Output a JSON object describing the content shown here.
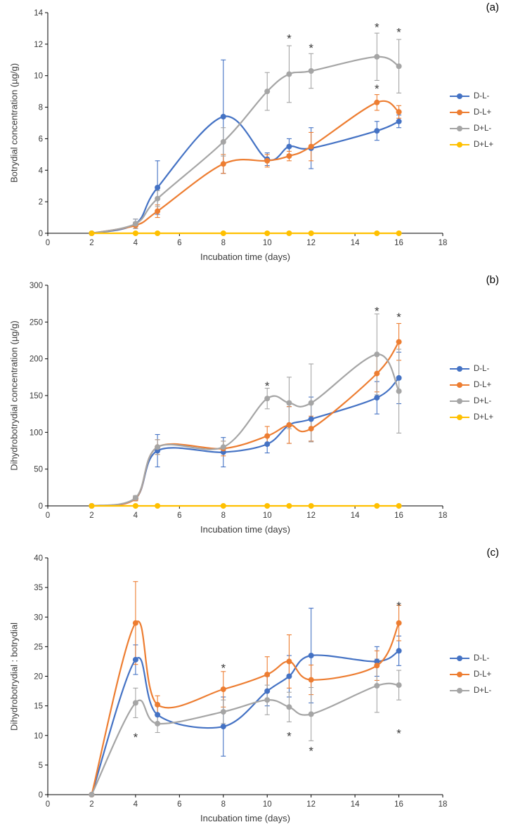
{
  "figure": {
    "background": "#ffffff"
  },
  "colors": {
    "axis": "#000000",
    "label_text": "#3a3a3a",
    "blue": "#4472C4",
    "orange": "#ED7D31",
    "gray": "#A5A5A5",
    "yellow": "#FFC000"
  },
  "chart_data": [
    {
      "id": "a",
      "type": "line",
      "panel_label": "(a)",
      "xlabel": "Incubation time (days)",
      "ylabel": "Botrydial concentration (µg/g)",
      "xlim": [
        0,
        18
      ],
      "ylim": [
        0,
        14
      ],
      "xticks": [
        0,
        2,
        4,
        6,
        8,
        10,
        12,
        14,
        16,
        18
      ],
      "yticks": [
        0,
        2,
        4,
        6,
        8,
        10,
        12,
        14
      ],
      "x": [
        2,
        4,
        5,
        8,
        10,
        11,
        12,
        15,
        16
      ],
      "series": [
        {
          "name": "D-L-",
          "color": "#4472C4",
          "values": [
            0,
            0.6,
            2.9,
            7.4,
            4.7,
            5.5,
            5.4,
            6.5,
            7.1
          ],
          "errors": [
            0,
            0.3,
            1.7,
            3.6,
            0.4,
            0.5,
            1.3,
            0.6,
            0.4
          ]
        },
        {
          "name": "D-L+",
          "color": "#ED7D31",
          "values": [
            0,
            0.5,
            1.4,
            4.4,
            4.6,
            4.9,
            5.5,
            8.3,
            7.7
          ],
          "errors": [
            0,
            0.2,
            0.4,
            0.6,
            0.4,
            0.3,
            0.9,
            0.5,
            0.4
          ]
        },
        {
          "name": "D+L-",
          "color": "#A5A5A5",
          "values": [
            0,
            0.6,
            2.2,
            5.8,
            9.0,
            10.1,
            10.3,
            11.2,
            10.6
          ],
          "errors": [
            0,
            0.3,
            0.5,
            0.9,
            1.2,
            1.8,
            1.1,
            1.5,
            1.7
          ]
        },
        {
          "name": "D+L+",
          "color": "#FFC000",
          "values": [
            0,
            0,
            0,
            0,
            0,
            0,
            0,
            0,
            0
          ],
          "errors": [
            0,
            0,
            0,
            0,
            0,
            0,
            0,
            0,
            0
          ]
        }
      ],
      "asterisks": [
        {
          "x": 11,
          "y": 12.6
        },
        {
          "x": 12,
          "y": 12.0
        },
        {
          "x": 15,
          "y": 13.3
        },
        {
          "x": 15,
          "y": 9.4
        },
        {
          "x": 16,
          "y": 13.0
        }
      ]
    },
    {
      "id": "b",
      "type": "line",
      "panel_label": "(b)",
      "xlabel": "Incubation time (days)",
      "ylabel": "Dihydrobotrydial concentration (µg/g)",
      "xlim": [
        0,
        18
      ],
      "ylim": [
        0,
        300
      ],
      "xticks": [
        0,
        2,
        4,
        6,
        8,
        10,
        12,
        14,
        16,
        18
      ],
      "yticks": [
        0,
        50,
        100,
        150,
        200,
        250,
        300
      ],
      "x": [
        2,
        4,
        5,
        8,
        10,
        11,
        12,
        15,
        16
      ],
      "series": [
        {
          "name": "D-L-",
          "color": "#4472C4",
          "values": [
            0,
            10,
            75,
            73,
            84,
            110,
            118,
            147,
            174
          ],
          "errors": [
            0,
            3,
            22,
            20,
            12,
            25,
            30,
            22,
            35
          ]
        },
        {
          "name": "D-L+",
          "color": "#ED7D31",
          "values": [
            0,
            10,
            80,
            78,
            95,
            110,
            105,
            180,
            223
          ],
          "errors": [
            0,
            3,
            10,
            10,
            13,
            25,
            17,
            25,
            25
          ]
        },
        {
          "name": "D+L-",
          "color": "#A5A5A5",
          "values": [
            0,
            11,
            80,
            80,
            146,
            140,
            140,
            206,
            156
          ],
          "errors": [
            0,
            3,
            10,
            8,
            14,
            35,
            53,
            55,
            57
          ]
        },
        {
          "name": "D+L+",
          "color": "#FFC000",
          "values": [
            0,
            0,
            0,
            0,
            0,
            0,
            0,
            0,
            0
          ],
          "errors": [
            0,
            0,
            0,
            0,
            0,
            0,
            0,
            0,
            0
          ]
        }
      ],
      "asterisks": [
        {
          "x": 10,
          "y": 168
        },
        {
          "x": 15,
          "y": 270
        },
        {
          "x": 16,
          "y": 262
        }
      ]
    },
    {
      "id": "c",
      "type": "line",
      "panel_label": "(c)",
      "xlabel": "Incubation time (days)",
      "ylabel": "Dihydrobotrydial : botrydial",
      "xlim": [
        0,
        18
      ],
      "ylim": [
        0,
        40
      ],
      "xticks": [
        0,
        2,
        4,
        6,
        8,
        10,
        12,
        14,
        16,
        18
      ],
      "yticks": [
        0,
        5,
        10,
        15,
        20,
        25,
        30,
        35,
        40
      ],
      "x": [
        2,
        4,
        5,
        8,
        10,
        11,
        12,
        15,
        16
      ],
      "series": [
        {
          "name": "D-L-",
          "color": "#4472C4",
          "values": [
            0,
            22.8,
            13.5,
            11.5,
            17.5,
            20.0,
            23.5,
            22.5,
            24.3
          ],
          "errors": [
            0,
            2.5,
            1.5,
            5.0,
            2.5,
            3.5,
            8.0,
            2.5,
            2.5
          ]
        },
        {
          "name": "D-L+",
          "color": "#ED7D31",
          "values": [
            0,
            29.0,
            15.2,
            17.8,
            20.3,
            22.5,
            19.4,
            21.8,
            29.0
          ],
          "errors": [
            0,
            7.0,
            1.5,
            3.0,
            3.0,
            4.5,
            2.5,
            2.5,
            3.0
          ]
        },
        {
          "name": "D+L-",
          "color": "#A5A5A5",
          "values": [
            0,
            15.5,
            12.0,
            14.0,
            16.0,
            14.8,
            13.6,
            18.4,
            18.5
          ],
          "errors": [
            0,
            2.5,
            1.5,
            2.0,
            2.5,
            2.5,
            4.5,
            4.5,
            2.5
          ]
        }
      ],
      "asterisks": [
        {
          "x": 4,
          "y": 10.3
        },
        {
          "x": 8,
          "y": 22.0
        },
        {
          "x": 11,
          "y": 10.5
        },
        {
          "x": 12,
          "y": 8.0
        },
        {
          "x": 16,
          "y": 32.5
        },
        {
          "x": 16,
          "y": 11.0
        }
      ]
    }
  ]
}
